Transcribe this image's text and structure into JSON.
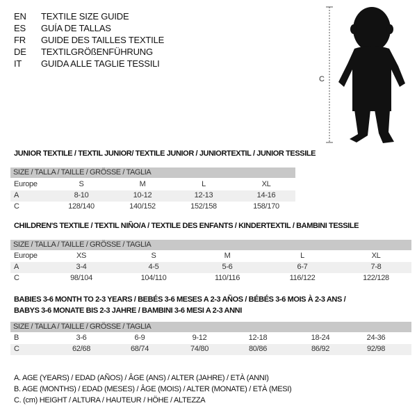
{
  "languages": [
    {
      "code": "EN",
      "text": "TEXTILE SIZE GUIDE"
    },
    {
      "code": "ES",
      "text": "GUÍA DE TALLAS"
    },
    {
      "code": "FR",
      "text": "GUIDE DES TAILLES TEXTILE"
    },
    {
      "code": "DE",
      "text": "TEXTILGRÖßENFÜHRUNG"
    },
    {
      "code": "IT",
      "text": "GUIDA ALLE TAGLIE TESSILI"
    }
  ],
  "figure": {
    "measure_label": "C"
  },
  "size_header": "SIZE / TALLA / TAILLE / GRÖSSE / TAGLIA",
  "junior": {
    "title": "JUNIOR TEXTILE / TEXTIL JUNIOR/ TEXTILE JUNIOR / JUNIORTEXTIL / JUNIOR TESSILE",
    "rows": [
      [
        "Europe",
        "S",
        "M",
        "L",
        "XL"
      ],
      [
        "A",
        "8-10",
        "10-12",
        "12-13",
        "14-16"
      ],
      [
        "C",
        "128/140",
        "140/152",
        "152/158",
        "158/170"
      ]
    ]
  },
  "children": {
    "title": "CHILDREN'S TEXTILE / TEXTIL NIÑO/A / TEXTILE DES ENFANTS / KINDERTEXTIL / BAMBINI TESSILE",
    "rows": [
      [
        "Europe",
        "XS",
        "S",
        "M",
        "L",
        "XL"
      ],
      [
        "A",
        "3-4",
        "4-5",
        "5-6",
        "6-7",
        "7-8"
      ],
      [
        "C",
        "98/104",
        "104/110",
        "110/116",
        "116/122",
        "122/128"
      ]
    ]
  },
  "babies": {
    "title_line1": "BABIES 3-6 MONTH TO 2-3 YEARS / BEBÉS 3-6 MESES A 2-3 AÑOS / BÉBÉS 3-6 MOIS À 2-3 ANS /",
    "title_line2": "BABYS 3-6 MONATE BIS 2-3 JAHRE / BAMBINI 3-6 MESI A 2-3 ANNI",
    "rows": [
      [
        "B",
        "3-6",
        "6-9",
        "9-12",
        "12-18",
        "18-24",
        "24-36"
      ],
      [
        "C",
        "62/68",
        "68/74",
        "74/80",
        "80/86",
        "86/92",
        "92/98"
      ]
    ]
  },
  "legend": [
    "A. AGE (YEARS) / EDAD (AÑOS) / ÂGE (ANS) / ALTER (JAHRE) / ETÀ (ANNI)",
    "B. AGE (MONTHS) / EDAD (MESES) / ÂGE (MOIS) / ALTER (MONATE) / ETÀ (MESI)",
    "C. (cm) HEIGHT / ALTURA / HAUTEUR / HÖHE / ALTEZZA"
  ]
}
